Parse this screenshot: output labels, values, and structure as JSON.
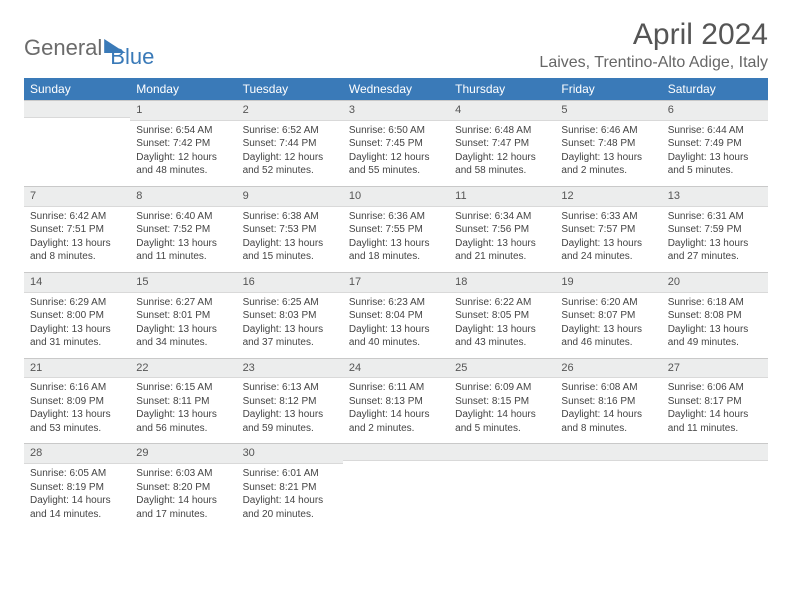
{
  "logo": {
    "text1": "General",
    "text2": "Blue"
  },
  "title": "April 2024",
  "location": "Laives, Trentino-Alto Adige, Italy",
  "day_names": [
    "Sunday",
    "Monday",
    "Tuesday",
    "Wednesday",
    "Thursday",
    "Friday",
    "Saturday"
  ],
  "colors": {
    "header_bg": "#3a7ab8",
    "header_text": "#ffffff",
    "daynum_bg": "#eceded",
    "border": "#c9c9c9",
    "text": "#444444",
    "title_text": "#555555"
  },
  "layout": {
    "columns": 7,
    "rows": 5,
    "cell_font_pt": 10,
    "header_font_pt": 12,
    "title_font_pt": 30
  },
  "weeks": [
    [
      {
        "n": "",
        "sr": "",
        "ss": "",
        "dl": ""
      },
      {
        "n": "1",
        "sr": "Sunrise: 6:54 AM",
        "ss": "Sunset: 7:42 PM",
        "dl": "Daylight: 12 hours and 48 minutes."
      },
      {
        "n": "2",
        "sr": "Sunrise: 6:52 AM",
        "ss": "Sunset: 7:44 PM",
        "dl": "Daylight: 12 hours and 52 minutes."
      },
      {
        "n": "3",
        "sr": "Sunrise: 6:50 AM",
        "ss": "Sunset: 7:45 PM",
        "dl": "Daylight: 12 hours and 55 minutes."
      },
      {
        "n": "4",
        "sr": "Sunrise: 6:48 AM",
        "ss": "Sunset: 7:47 PM",
        "dl": "Daylight: 12 hours and 58 minutes."
      },
      {
        "n": "5",
        "sr": "Sunrise: 6:46 AM",
        "ss": "Sunset: 7:48 PM",
        "dl": "Daylight: 13 hours and 2 minutes."
      },
      {
        "n": "6",
        "sr": "Sunrise: 6:44 AM",
        "ss": "Sunset: 7:49 PM",
        "dl": "Daylight: 13 hours and 5 minutes."
      }
    ],
    [
      {
        "n": "7",
        "sr": "Sunrise: 6:42 AM",
        "ss": "Sunset: 7:51 PM",
        "dl": "Daylight: 13 hours and 8 minutes."
      },
      {
        "n": "8",
        "sr": "Sunrise: 6:40 AM",
        "ss": "Sunset: 7:52 PM",
        "dl": "Daylight: 13 hours and 11 minutes."
      },
      {
        "n": "9",
        "sr": "Sunrise: 6:38 AM",
        "ss": "Sunset: 7:53 PM",
        "dl": "Daylight: 13 hours and 15 minutes."
      },
      {
        "n": "10",
        "sr": "Sunrise: 6:36 AM",
        "ss": "Sunset: 7:55 PM",
        "dl": "Daylight: 13 hours and 18 minutes."
      },
      {
        "n": "11",
        "sr": "Sunrise: 6:34 AM",
        "ss": "Sunset: 7:56 PM",
        "dl": "Daylight: 13 hours and 21 minutes."
      },
      {
        "n": "12",
        "sr": "Sunrise: 6:33 AM",
        "ss": "Sunset: 7:57 PM",
        "dl": "Daylight: 13 hours and 24 minutes."
      },
      {
        "n": "13",
        "sr": "Sunrise: 6:31 AM",
        "ss": "Sunset: 7:59 PM",
        "dl": "Daylight: 13 hours and 27 minutes."
      }
    ],
    [
      {
        "n": "14",
        "sr": "Sunrise: 6:29 AM",
        "ss": "Sunset: 8:00 PM",
        "dl": "Daylight: 13 hours and 31 minutes."
      },
      {
        "n": "15",
        "sr": "Sunrise: 6:27 AM",
        "ss": "Sunset: 8:01 PM",
        "dl": "Daylight: 13 hours and 34 minutes."
      },
      {
        "n": "16",
        "sr": "Sunrise: 6:25 AM",
        "ss": "Sunset: 8:03 PM",
        "dl": "Daylight: 13 hours and 37 minutes."
      },
      {
        "n": "17",
        "sr": "Sunrise: 6:23 AM",
        "ss": "Sunset: 8:04 PM",
        "dl": "Daylight: 13 hours and 40 minutes."
      },
      {
        "n": "18",
        "sr": "Sunrise: 6:22 AM",
        "ss": "Sunset: 8:05 PM",
        "dl": "Daylight: 13 hours and 43 minutes."
      },
      {
        "n": "19",
        "sr": "Sunrise: 6:20 AM",
        "ss": "Sunset: 8:07 PM",
        "dl": "Daylight: 13 hours and 46 minutes."
      },
      {
        "n": "20",
        "sr": "Sunrise: 6:18 AM",
        "ss": "Sunset: 8:08 PM",
        "dl": "Daylight: 13 hours and 49 minutes."
      }
    ],
    [
      {
        "n": "21",
        "sr": "Sunrise: 6:16 AM",
        "ss": "Sunset: 8:09 PM",
        "dl": "Daylight: 13 hours and 53 minutes."
      },
      {
        "n": "22",
        "sr": "Sunrise: 6:15 AM",
        "ss": "Sunset: 8:11 PM",
        "dl": "Daylight: 13 hours and 56 minutes."
      },
      {
        "n": "23",
        "sr": "Sunrise: 6:13 AM",
        "ss": "Sunset: 8:12 PM",
        "dl": "Daylight: 13 hours and 59 minutes."
      },
      {
        "n": "24",
        "sr": "Sunrise: 6:11 AM",
        "ss": "Sunset: 8:13 PM",
        "dl": "Daylight: 14 hours and 2 minutes."
      },
      {
        "n": "25",
        "sr": "Sunrise: 6:09 AM",
        "ss": "Sunset: 8:15 PM",
        "dl": "Daylight: 14 hours and 5 minutes."
      },
      {
        "n": "26",
        "sr": "Sunrise: 6:08 AM",
        "ss": "Sunset: 8:16 PM",
        "dl": "Daylight: 14 hours and 8 minutes."
      },
      {
        "n": "27",
        "sr": "Sunrise: 6:06 AM",
        "ss": "Sunset: 8:17 PM",
        "dl": "Daylight: 14 hours and 11 minutes."
      }
    ],
    [
      {
        "n": "28",
        "sr": "Sunrise: 6:05 AM",
        "ss": "Sunset: 8:19 PM",
        "dl": "Daylight: 14 hours and 14 minutes."
      },
      {
        "n": "29",
        "sr": "Sunrise: 6:03 AM",
        "ss": "Sunset: 8:20 PM",
        "dl": "Daylight: 14 hours and 17 minutes."
      },
      {
        "n": "30",
        "sr": "Sunrise: 6:01 AM",
        "ss": "Sunset: 8:21 PM",
        "dl": "Daylight: 14 hours and 20 minutes."
      },
      {
        "n": "",
        "sr": "",
        "ss": "",
        "dl": ""
      },
      {
        "n": "",
        "sr": "",
        "ss": "",
        "dl": ""
      },
      {
        "n": "",
        "sr": "",
        "ss": "",
        "dl": ""
      },
      {
        "n": "",
        "sr": "",
        "ss": "",
        "dl": ""
      }
    ]
  ]
}
